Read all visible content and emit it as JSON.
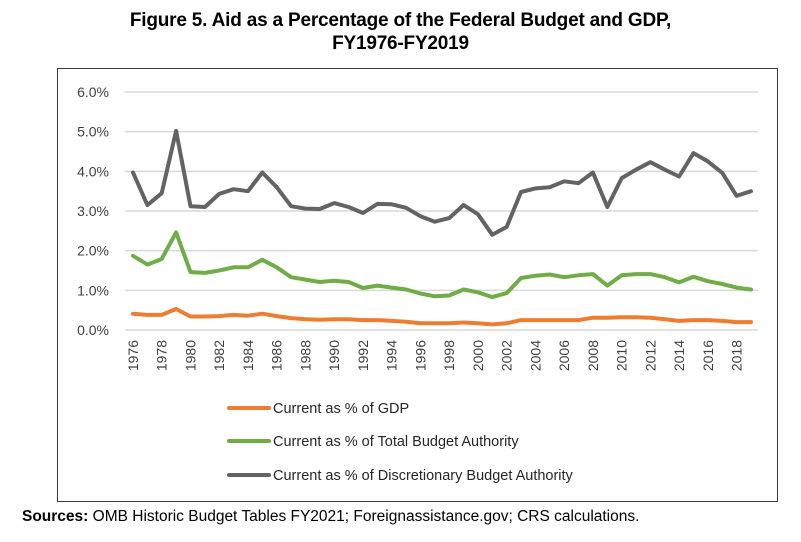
{
  "figure": {
    "title_line1": "Figure 5. Aid as a Percentage of the Federal Budget and GDP,",
    "title_line2": "FY1976-FY2019",
    "sources_label": "Sources:",
    "sources_text": " OMB Historic Budget Tables FY2021; Foreignassistance.gov; CRS calculations."
  },
  "chart_data": {
    "type": "line",
    "title": "Figure 5. Aid as a Percentage of the Federal Budget and GDP, FY1976-FY2019",
    "xlabel": "",
    "ylabel": "",
    "x": [
      1976,
      1977,
      1978,
      1979,
      1980,
      1981,
      1982,
      1983,
      1984,
      1985,
      1986,
      1987,
      1988,
      1989,
      1990,
      1991,
      1992,
      1993,
      1994,
      1995,
      1996,
      1997,
      1998,
      1999,
      2000,
      2001,
      2002,
      2003,
      2004,
      2005,
      2006,
      2007,
      2008,
      2009,
      2010,
      2011,
      2012,
      2013,
      2014,
      2015,
      2016,
      2017,
      2018,
      2019
    ],
    "x_tick_labels": [
      "1976",
      "1978",
      "1980",
      "1982",
      "1984",
      "1986",
      "1988",
      "1990",
      "1992",
      "1994",
      "1996",
      "1998",
      "2000",
      "2002",
      "2004",
      "2006",
      "2008",
      "2010",
      "2012",
      "2014",
      "2016",
      "2018"
    ],
    "ylim": [
      0,
      6
    ],
    "y_ticks": [
      0,
      1,
      2,
      3,
      4,
      5,
      6
    ],
    "y_tick_labels": [
      "0.0%",
      "1.0%",
      "2.0%",
      "3.0%",
      "4.0%",
      "5.0%",
      "6.0%"
    ],
    "grid": "horizontal",
    "legend_position": "bottom",
    "series": [
      {
        "name": "Current as % of GDP",
        "color": "#ed7d31",
        "values": [
          0.41,
          0.38,
          0.38,
          0.53,
          0.34,
          0.34,
          0.35,
          0.38,
          0.36,
          0.41,
          0.35,
          0.3,
          0.27,
          0.26,
          0.27,
          0.27,
          0.25,
          0.25,
          0.23,
          0.21,
          0.17,
          0.17,
          0.17,
          0.19,
          0.17,
          0.14,
          0.17,
          0.25,
          0.25,
          0.25,
          0.25,
          0.25,
          0.31,
          0.31,
          0.32,
          0.32,
          0.31,
          0.27,
          0.23,
          0.25,
          0.25,
          0.23,
          0.2,
          0.2
        ]
      },
      {
        "name": "Current as % of Total Budget Authority",
        "color": "#70ad47",
        "values": [
          1.87,
          1.65,
          1.79,
          2.46,
          1.46,
          1.44,
          1.5,
          1.58,
          1.58,
          1.77,
          1.58,
          1.33,
          1.27,
          1.21,
          1.24,
          1.21,
          1.06,
          1.12,
          1.07,
          1.02,
          0.92,
          0.85,
          0.87,
          1.02,
          0.95,
          0.83,
          0.93,
          1.31,
          1.37,
          1.4,
          1.33,
          1.38,
          1.41,
          1.12,
          1.38,
          1.41,
          1.41,
          1.33,
          1.2,
          1.34,
          1.23,
          1.16,
          1.07,
          1.02
        ]
      },
      {
        "name": "Current as % of Discretionary Budget Authority",
        "color": "#636363",
        "values": [
          3.97,
          3.15,
          3.45,
          5.02,
          3.12,
          3.1,
          3.43,
          3.55,
          3.5,
          3.97,
          3.6,
          3.12,
          3.06,
          3.05,
          3.2,
          3.1,
          2.95,
          3.18,
          3.17,
          3.08,
          2.87,
          2.73,
          2.82,
          3.15,
          2.92,
          2.4,
          2.6,
          3.48,
          3.57,
          3.6,
          3.75,
          3.7,
          3.97,
          3.1,
          3.83,
          4.04,
          4.23,
          4.04,
          3.87,
          4.46,
          4.25,
          3.96,
          3.38,
          3.5
        ]
      }
    ]
  }
}
